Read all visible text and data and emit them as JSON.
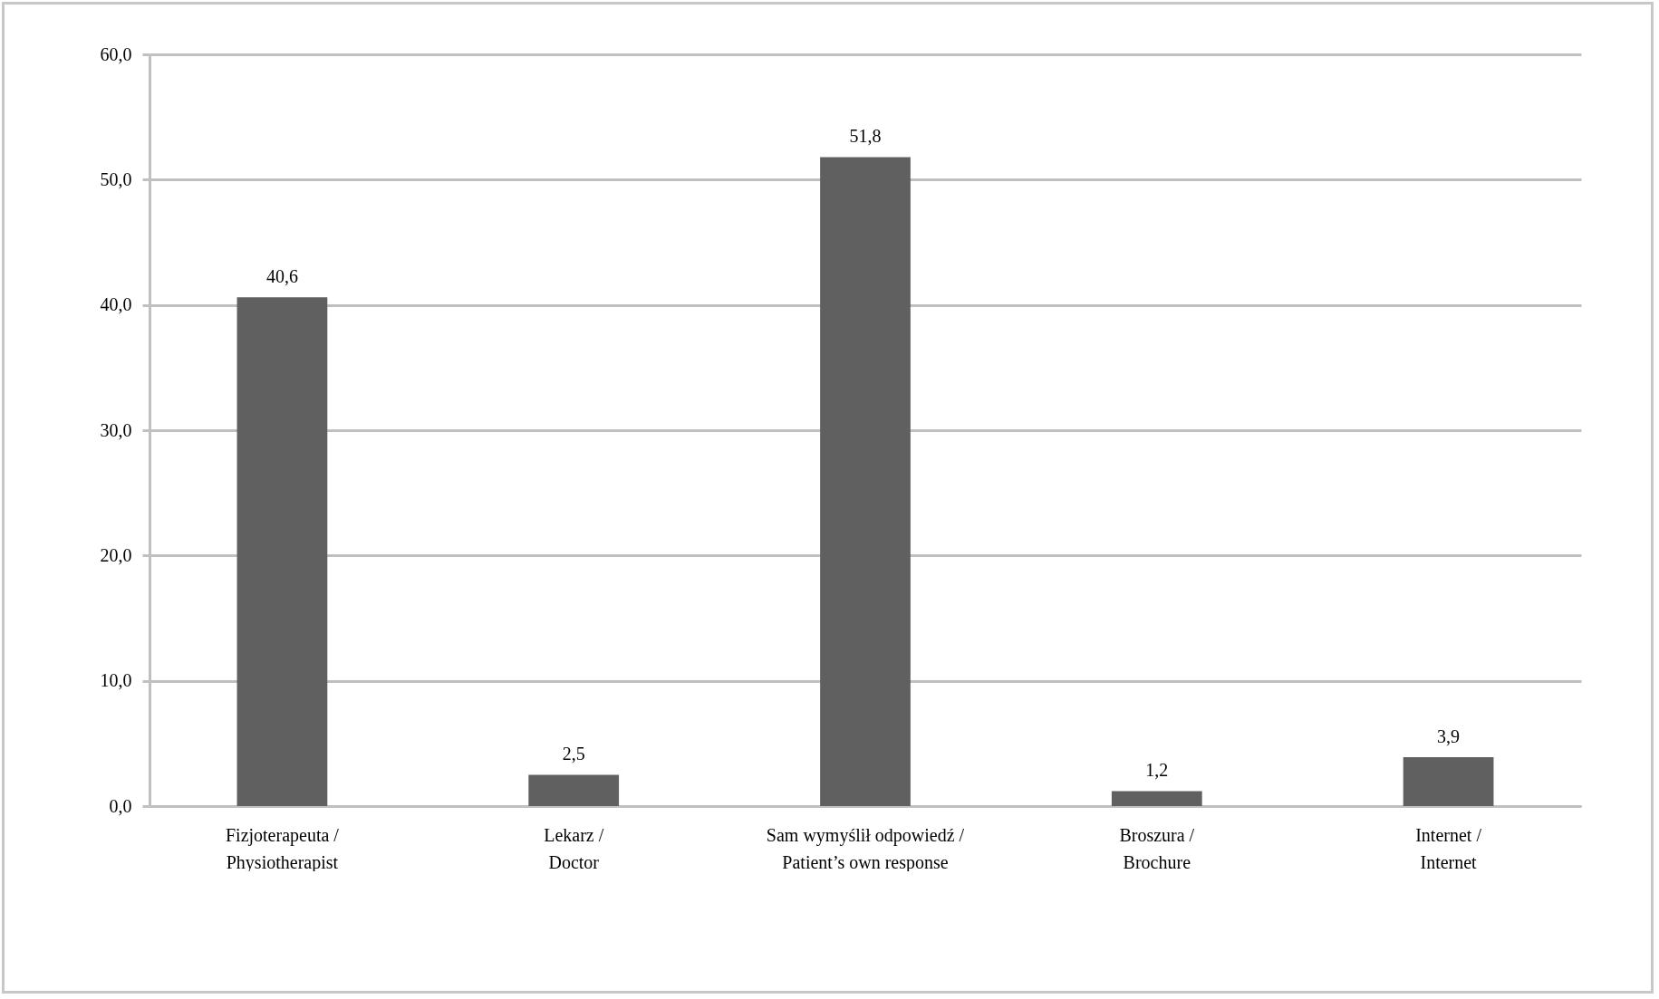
{
  "chart_data": {
    "type": "bar",
    "categories": [
      "Fizjoterapeuta / Physiotherapist",
      "Lekarz / Doctor",
      "Sam wymyślił odpowiedź / Patient’s own response",
      "Broszura / Brochure",
      "Internet / Internet"
    ],
    "values": [
      40.6,
      2.5,
      51.8,
      1.2,
      3.9
    ],
    "value_labels": [
      "40,6",
      "2,5",
      "51,8",
      "1,2",
      "3,9"
    ],
    "color": "#606060",
    "ylim": [
      0,
      60
    ],
    "yticks": [
      {
        "value": 0,
        "label": "0,0"
      },
      {
        "value": 10,
        "label": "10,0"
      },
      {
        "value": 20,
        "label": "20,0"
      },
      {
        "value": 30,
        "label": "30,0"
      },
      {
        "value": 40,
        "label": "40,0"
      },
      {
        "value": 50,
        "label": "50,0"
      },
      {
        "value": 60,
        "label": "60,0"
      }
    ],
    "grid": "y"
  }
}
